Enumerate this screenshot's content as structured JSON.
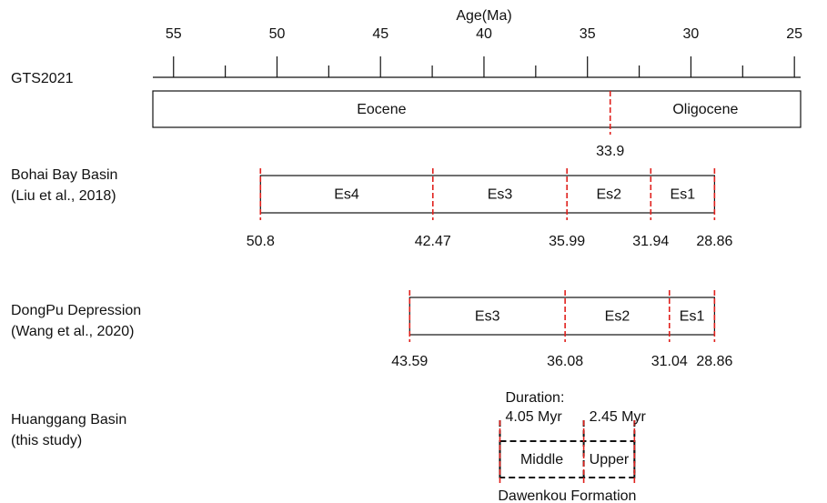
{
  "axis": {
    "label": "Age(Ma)",
    "xlim": [
      56,
      24.7
    ],
    "ticks": [
      55,
      50,
      45,
      40,
      35,
      30,
      25
    ],
    "minor_ticks": [
      52.5,
      47.5,
      42.5,
      37.5,
      32.5,
      27.5
    ]
  },
  "rows": [
    {
      "label": [
        "GTS2021"
      ],
      "units": [
        "Eocene",
        "Oligocene"
      ],
      "boundaries": [
        33.9
      ]
    },
    {
      "label": [
        "Bohai Bay Basin",
        "(Liu et al., 2018)"
      ],
      "units": [
        "Es4",
        "Es3",
        "Es2",
        "Es1"
      ],
      "boundaries": [
        50.8,
        42.47,
        35.99,
        31.94,
        28.86
      ]
    },
    {
      "label": [
        "DongPu Depression",
        "(Wang et al., 2020)"
      ],
      "units": [
        "Es3",
        "Es2",
        "Es1"
      ],
      "boundaries": [
        43.59,
        36.08,
        31.04,
        28.86
      ]
    },
    {
      "label": [
        "Huanggang Basin",
        "(this study)"
      ],
      "units": [
        "Middle",
        "Upper"
      ],
      "boundaries": [
        39.23,
        35.18,
        32.73
      ],
      "duration_title": "Duration:",
      "durations": [
        "4.05 Myr",
        "2.45 Myr"
      ],
      "formation": "Dawenkou Formation"
    }
  ]
}
